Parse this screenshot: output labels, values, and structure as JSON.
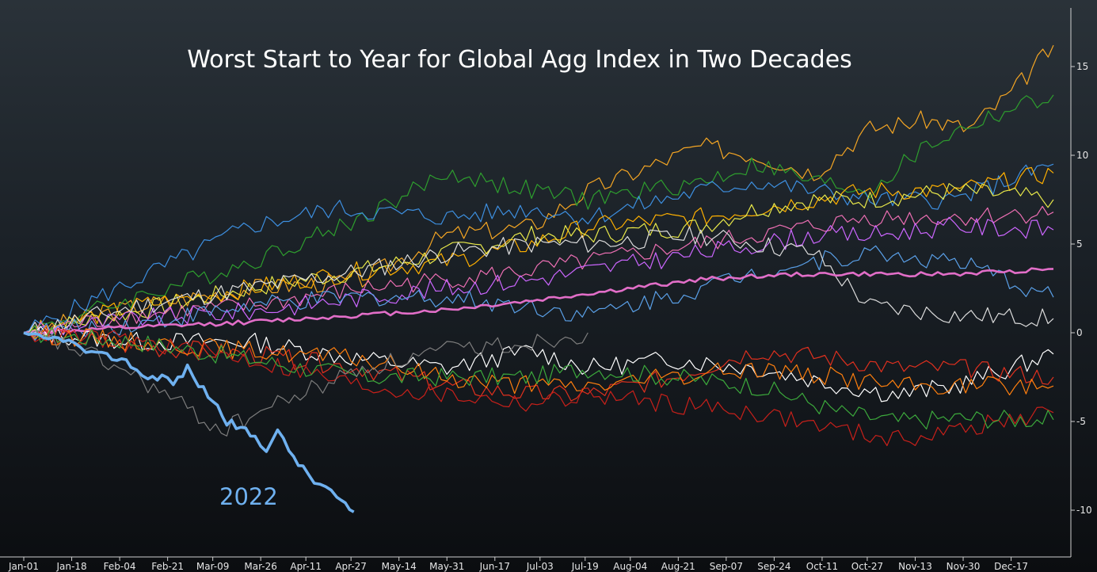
{
  "chart_data": {
    "type": "line",
    "title": "Worst Start to Year for Global Agg Index in Two Decades",
    "xlabel": "",
    "ylabel": "",
    "ylim": [
      -12.5,
      17.5
    ],
    "yticks": [
      15,
      10,
      5,
      0,
      -5,
      -10
    ],
    "ytick_labels": [
      "15",
      "10",
      "5",
      "0",
      "-5",
      "-10"
    ],
    "xticks": [
      "Jan-01",
      "Jan-18",
      "Feb-04",
      "Feb-21",
      "Mar-09",
      "Mar-26",
      "Apr-11",
      "Apr-27",
      "May-14",
      "May-31",
      "Jun-17",
      "Jul-03",
      "Jul-19",
      "Aug-04",
      "Aug-21",
      "Sep-07",
      "Sep-24",
      "Oct-11",
      "Oct-27",
      "Nov-13",
      "Nov-30",
      "Dec-17"
    ],
    "x_day_of_year": [
      0,
      17,
      34,
      51,
      67,
      84,
      100,
      116,
      133,
      150,
      167,
      183,
      199,
      215,
      232,
      249,
      266,
      283,
      299,
      316,
      333,
      350
    ],
    "grid": false,
    "legend": "none",
    "annotations": [
      {
        "text": "2022",
        "color": "#6fb1f0"
      }
    ],
    "highlight": {
      "name": "2022",
      "color": "#6fb1f0",
      "points": [
        [
          0,
          0
        ],
        [
          7,
          -0.4
        ],
        [
          14,
          -0.3
        ],
        [
          20,
          -0.9
        ],
        [
          26,
          -1.3
        ],
        [
          33,
          -1.4
        ],
        [
          38,
          -1.8
        ],
        [
          44,
          -2.6
        ],
        [
          49,
          -2.4
        ],
        [
          53,
          -2.9
        ],
        [
          58,
          -2.0
        ],
        [
          62,
          -2.9
        ],
        [
          67,
          -3.8
        ],
        [
          72,
          -5.0
        ],
        [
          77,
          -5.4
        ],
        [
          82,
          -5.9
        ],
        [
          86,
          -6.5
        ],
        [
          90,
          -5.6
        ],
        [
          94,
          -6.6
        ],
        [
          99,
          -7.7
        ],
        [
          103,
          -8.4
        ],
        [
          107,
          -8.7
        ],
        [
          111,
          -9.3
        ],
        [
          114,
          -9.8
        ],
        [
          117,
          -10.1
        ]
      ]
    },
    "series": [
      {
        "color": "#f5a623",
        "points": [
          [
            0,
            0
          ],
          [
            40,
            1.5
          ],
          [
            80,
            2.5
          ],
          [
            120,
            3.0
          ],
          [
            150,
            5.5
          ],
          [
            180,
            6.0
          ],
          [
            200,
            8.0
          ],
          [
            240,
            10.5
          ],
          [
            260,
            10.0
          ],
          [
            280,
            9.0
          ],
          [
            300,
            11.5
          ],
          [
            320,
            12.0
          ],
          [
            335,
            11.5
          ],
          [
            350,
            13.5
          ],
          [
            365,
            16.2
          ]
        ]
      },
      {
        "color": "#2e9e2e",
        "points": [
          [
            0,
            0
          ],
          [
            40,
            2.0
          ],
          [
            80,
            4.0
          ],
          [
            120,
            6.5
          ],
          [
            150,
            9.0
          ],
          [
            180,
            8.0
          ],
          [
            200,
            7.5
          ],
          [
            240,
            8.5
          ],
          [
            260,
            9.5
          ],
          [
            280,
            8.5
          ],
          [
            300,
            8.0
          ],
          [
            320,
            10.5
          ],
          [
            340,
            12.0
          ],
          [
            365,
            13.4
          ]
        ]
      },
      {
        "color": "#3d8fe0",
        "points": [
          [
            0,
            0
          ],
          [
            40,
            3.0
          ],
          [
            80,
            6.0
          ],
          [
            110,
            7.0
          ],
          [
            150,
            6.5
          ],
          [
            180,
            7.0
          ],
          [
            200,
            6.5
          ],
          [
            240,
            8.0
          ],
          [
            260,
            8.5
          ],
          [
            280,
            8.0
          ],
          [
            300,
            7.5
          ],
          [
            330,
            7.5
          ],
          [
            365,
            9.5
          ]
        ]
      },
      {
        "color": "#ffb000",
        "points": [
          [
            0,
            0
          ],
          [
            40,
            1.5
          ],
          [
            80,
            2.5
          ],
          [
            120,
            3.5
          ],
          [
            150,
            4.0
          ],
          [
            180,
            5.0
          ],
          [
            200,
            6.0
          ],
          [
            240,
            6.5
          ],
          [
            260,
            7.0
          ],
          [
            280,
            7.5
          ],
          [
            300,
            8.0
          ],
          [
            330,
            8.0
          ],
          [
            365,
            9.0
          ]
        ]
      },
      {
        "color": "#e8e84a",
        "points": [
          [
            0,
            0
          ],
          [
            40,
            1.2
          ],
          [
            80,
            2.5
          ],
          [
            120,
            3.5
          ],
          [
            150,
            4.5
          ],
          [
            180,
            5.5
          ],
          [
            200,
            5.5
          ],
          [
            240,
            6.0
          ],
          [
            260,
            7.0
          ],
          [
            280,
            7.5
          ],
          [
            300,
            7.5
          ],
          [
            330,
            8.0
          ],
          [
            365,
            7.5
          ]
        ]
      },
      {
        "color": "#ee6fb4",
        "points": [
          [
            0,
            0
          ],
          [
            40,
            1.0
          ],
          [
            80,
            1.5
          ],
          [
            120,
            2.5
          ],
          [
            150,
            3.0
          ],
          [
            180,
            3.5
          ],
          [
            200,
            4.0
          ],
          [
            240,
            5.0
          ],
          [
            260,
            5.5
          ],
          [
            280,
            6.0
          ],
          [
            300,
            6.5
          ],
          [
            330,
            6.5
          ],
          [
            365,
            6.8
          ]
        ]
      },
      {
        "color": "#cc66ff",
        "points": [
          [
            0,
            0
          ],
          [
            40,
            0.8
          ],
          [
            80,
            1.2
          ],
          [
            120,
            2.0
          ],
          [
            150,
            2.5
          ],
          [
            180,
            3.0
          ],
          [
            200,
            3.5
          ],
          [
            240,
            4.5
          ],
          [
            260,
            5.0
          ],
          [
            280,
            5.5
          ],
          [
            300,
            5.5
          ],
          [
            330,
            6.0
          ],
          [
            365,
            5.8
          ]
        ]
      },
      {
        "color": "#5aa0e8",
        "points": [
          [
            0,
            0
          ],
          [
            40,
            0.5
          ],
          [
            80,
            1.5
          ],
          [
            120,
            2.0
          ],
          [
            150,
            2.0
          ],
          [
            180,
            1.5
          ],
          [
            200,
            1.0
          ],
          [
            240,
            2.5
          ],
          [
            260,
            3.5
          ],
          [
            280,
            4.0
          ],
          [
            300,
            4.5
          ],
          [
            330,
            4.0
          ],
          [
            365,
            2.0
          ]
        ]
      },
      {
        "color": "#dddddd",
        "points": [
          [
            0,
            0
          ],
          [
            40,
            1.5
          ],
          [
            80,
            2.5
          ],
          [
            120,
            3.5
          ],
          [
            150,
            4.5
          ],
          [
            180,
            5.0
          ],
          [
            200,
            5.0
          ],
          [
            240,
            5.5
          ],
          [
            260,
            5.0
          ],
          [
            280,
            4.5
          ],
          [
            290,
            3.0
          ],
          [
            300,
            1.5
          ],
          [
            330,
            1.0
          ],
          [
            365,
            0.8
          ]
        ]
      },
      {
        "color": "#e26ec8",
        "bold": true,
        "points": [
          [
            0,
            0
          ],
          [
            40,
            0.3
          ],
          [
            80,
            0.6
          ],
          [
            120,
            1.0
          ],
          [
            150,
            1.3
          ],
          [
            180,
            1.8
          ],
          [
            200,
            2.2
          ],
          [
            240,
            3.0
          ],
          [
            260,
            3.2
          ],
          [
            280,
            3.3
          ],
          [
            300,
            3.3
          ],
          [
            330,
            3.3
          ],
          [
            365,
            3.6
          ]
        ]
      },
      {
        "color": "#ffffff",
        "points": [
          [
            0,
            0
          ],
          [
            40,
            -0.5
          ],
          [
            80,
            -0.5
          ],
          [
            120,
            -1.5
          ],
          [
            150,
            -2.0
          ],
          [
            180,
            -1.0
          ],
          [
            200,
            -2.0
          ],
          [
            230,
            -1.5
          ],
          [
            260,
            -2.0
          ],
          [
            290,
            -3.0
          ],
          [
            310,
            -3.5
          ],
          [
            330,
            -3.0
          ],
          [
            350,
            -2.0
          ],
          [
            365,
            -1.2
          ]
        ]
      },
      {
        "color": "#e0301e",
        "points": [
          [
            0,
            0
          ],
          [
            40,
            -0.8
          ],
          [
            80,
            -1.2
          ],
          [
            120,
            -2.0
          ],
          [
            150,
            -3.0
          ],
          [
            180,
            -3.5
          ],
          [
            200,
            -3.5
          ],
          [
            230,
            -2.5
          ],
          [
            260,
            -1.0
          ],
          [
            290,
            -1.5
          ],
          [
            310,
            -2.0
          ],
          [
            330,
            -2.0
          ],
          [
            365,
            -2.5
          ]
        ]
      },
      {
        "color": "#ff7f0e",
        "points": [
          [
            0,
            0
          ],
          [
            40,
            -0.5
          ],
          [
            80,
            -1.0
          ],
          [
            120,
            -1.5
          ],
          [
            150,
            -2.5
          ],
          [
            180,
            -3.0
          ],
          [
            200,
            -3.0
          ],
          [
            230,
            -2.5
          ],
          [
            260,
            -2.0
          ],
          [
            290,
            -2.5
          ],
          [
            310,
            -3.0
          ],
          [
            330,
            -3.0
          ],
          [
            365,
            -3.0
          ]
        ]
      },
      {
        "color": "#c8201a",
        "points": [
          [
            0,
            0
          ],
          [
            40,
            -0.5
          ],
          [
            80,
            -1.5
          ],
          [
            120,
            -3.0
          ],
          [
            150,
            -3.5
          ],
          [
            180,
            -4.0
          ],
          [
            200,
            -3.5
          ],
          [
            230,
            -4.0
          ],
          [
            260,
            -4.5
          ],
          [
            290,
            -5.5
          ],
          [
            310,
            -6.0
          ],
          [
            330,
            -5.5
          ],
          [
            365,
            -4.5
          ]
        ]
      },
      {
        "color": "#3caa3c",
        "points": [
          [
            0,
            0
          ],
          [
            40,
            -0.5
          ],
          [
            80,
            -1.5
          ],
          [
            120,
            -2.5
          ],
          [
            150,
            -2.5
          ],
          [
            180,
            -2.5
          ],
          [
            200,
            -2.0
          ],
          [
            230,
            -2.5
          ],
          [
            260,
            -3.0
          ],
          [
            290,
            -4.5
          ],
          [
            310,
            -5.0
          ],
          [
            330,
            -4.8
          ],
          [
            365,
            -4.9
          ]
        ]
      },
      {
        "color": "#7d7d7d",
        "points": [
          [
            0,
            0
          ],
          [
            20,
            -1.0
          ],
          [
            40,
            -2.5
          ],
          [
            60,
            -4.5
          ],
          [
            70,
            -5.5
          ],
          [
            90,
            -4.0
          ],
          [
            120,
            -2.0
          ],
          [
            150,
            -1.0
          ],
          [
            180,
            -0.5
          ],
          [
            200,
            0.0
          ]
        ]
      }
    ]
  }
}
